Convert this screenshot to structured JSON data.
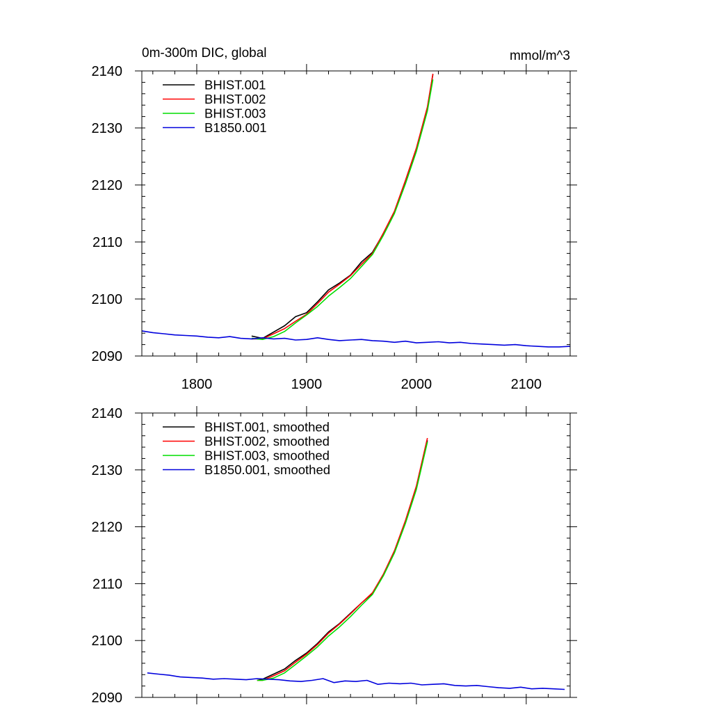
{
  "figure": {
    "title_left": "0m-300m DIC, global",
    "title_right": "mmol/m^3"
  },
  "chart_data": [
    {
      "type": "line",
      "title": "0m-300m DIC, global",
      "units": "mmol/m^3",
      "xlim": [
        1750,
        2140
      ],
      "ylim": [
        2090,
        2140
      ],
      "x_ticks": [
        1800,
        1900,
        2000,
        2100
      ],
      "x_tick_labels": [
        "1800",
        "1900",
        "2000",
        "2100"
      ],
      "y_ticks": [
        2090,
        2100,
        2110,
        2120,
        2130,
        2140
      ],
      "y_tick_labels": [
        "2090",
        "2100",
        "2110",
        "2120",
        "2130",
        "2140"
      ],
      "legend_position": "top-left",
      "series": [
        {
          "name": "BHIST.001",
          "color": "#000000",
          "x": [
            1850,
            1860,
            1870,
            1880,
            1890,
            1900,
            1910,
            1920,
            1930,
            1940,
            1950,
            1960,
            1970,
            1980,
            1990,
            2000,
            2010,
            2015
          ],
          "y": [
            2093.5,
            2093.1,
            2094.2,
            2095.3,
            2096.9,
            2097.6,
            2099.5,
            2101.6,
            2102.8,
            2104.2,
            2106.5,
            2108.2,
            2111.5,
            2115.2,
            2120.5,
            2126.2,
            2133.5,
            2139.4
          ]
        },
        {
          "name": "BHIST.002",
          "color": "#ff0000",
          "x": [
            1850,
            1860,
            1870,
            1880,
            1890,
            1900,
            1910,
            1920,
            1930,
            1940,
            1950,
            1960,
            1970,
            1980,
            1990,
            2000,
            2010,
            2015
          ],
          "y": [
            2093.0,
            2093.0,
            2093.9,
            2094.8,
            2096.1,
            2097.3,
            2099.2,
            2101.2,
            2102.6,
            2104.1,
            2106.1,
            2108.0,
            2111.6,
            2115.4,
            2120.8,
            2126.5,
            2133.7,
            2139.5
          ]
        },
        {
          "name": "BHIST.003",
          "color": "#00dd00",
          "x": [
            1850,
            1860,
            1870,
            1880,
            1890,
            1900,
            1910,
            1920,
            1930,
            1940,
            1950,
            1960,
            1970,
            1980,
            1990,
            2000,
            2010,
            2015
          ],
          "y": [
            2093.1,
            2092.9,
            2093.4,
            2094.3,
            2095.8,
            2097.2,
            2098.7,
            2100.5,
            2102.0,
            2103.6,
            2105.7,
            2107.8,
            2111.2,
            2115.0,
            2120.2,
            2125.9,
            2133.0,
            2138.5
          ]
        },
        {
          "name": "B1850.001",
          "color": "#0000dd",
          "x": [
            1750,
            1760,
            1770,
            1780,
            1790,
            1800,
            1810,
            1820,
            1830,
            1840,
            1850,
            1860,
            1870,
            1880,
            1890,
            1900,
            1910,
            1920,
            1930,
            1940,
            1950,
            1960,
            1970,
            1980,
            1990,
            2000,
            2010,
            2020,
            2030,
            2040,
            2050,
            2060,
            2070,
            2080,
            2090,
            2100,
            2110,
            2120,
            2130,
            2140
          ],
          "y": [
            2094.4,
            2094.1,
            2093.9,
            2093.7,
            2093.6,
            2093.5,
            2093.3,
            2093.2,
            2093.4,
            2093.1,
            2093.0,
            2093.2,
            2093.0,
            2093.1,
            2092.8,
            2092.9,
            2093.2,
            2092.9,
            2092.7,
            2092.8,
            2092.9,
            2092.7,
            2092.6,
            2092.4,
            2092.6,
            2092.3,
            2092.4,
            2092.5,
            2092.3,
            2092.4,
            2092.2,
            2092.1,
            2092.0,
            2091.9,
            2092.0,
            2091.8,
            2091.7,
            2091.6,
            2091.6,
            2091.7
          ]
        }
      ]
    },
    {
      "type": "line",
      "xlim": [
        1750,
        2140
      ],
      "ylim": [
        2090,
        2140
      ],
      "x_ticks": [
        1800,
        1900,
        2000,
        2100
      ],
      "y_ticks": [
        2090,
        2100,
        2110,
        2120,
        2130,
        2140
      ],
      "y_tick_labels": [
        "2090",
        "2100",
        "2110",
        "2120",
        "2130",
        "2140"
      ],
      "legend_position": "top-left",
      "series": [
        {
          "name": "BHIST.001, smoothed",
          "color": "#000000",
          "x": [
            1855,
            1860,
            1870,
            1880,
            1890,
            1900,
            1910,
            1920,
            1930,
            1940,
            1950,
            1960,
            1970,
            1980,
            1990,
            2000,
            2010
          ],
          "y": [
            2093.0,
            2093.2,
            2094.1,
            2095.0,
            2096.5,
            2097.8,
            2099.5,
            2101.5,
            2103.0,
            2104.8,
            2106.6,
            2108.3,
            2111.5,
            2115.5,
            2120.8,
            2126.9,
            2135.2
          ]
        },
        {
          "name": "BHIST.002, smoothed",
          "color": "#ff0000",
          "x": [
            1855,
            1860,
            1870,
            1880,
            1890,
            1900,
            1910,
            1920,
            1930,
            1940,
            1950,
            1960,
            1970,
            1980,
            1990,
            2000,
            2010
          ],
          "y": [
            2093.0,
            2093.0,
            2093.8,
            2094.7,
            2096.2,
            2097.6,
            2099.3,
            2101.3,
            2102.9,
            2104.7,
            2106.6,
            2108.4,
            2111.7,
            2115.8,
            2121.1,
            2127.2,
            2135.6
          ]
        },
        {
          "name": "BHIST.003, smoothed",
          "color": "#00dd00",
          "x": [
            1855,
            1860,
            1870,
            1880,
            1890,
            1900,
            1910,
            1920,
            1930,
            1940,
            1950,
            1960,
            1970,
            1980,
            1990,
            2000,
            2010
          ],
          "y": [
            2093.0,
            2093.0,
            2093.4,
            2094.3,
            2095.8,
            2097.3,
            2098.9,
            2100.8,
            2102.4,
            2104.2,
            2106.2,
            2108.1,
            2111.4,
            2115.4,
            2120.6,
            2126.6,
            2134.9
          ]
        },
        {
          "name": "B1850.001, smoothed",
          "color": "#0000dd",
          "x": [
            1755,
            1765,
            1775,
            1785,
            1795,
            1805,
            1815,
            1825,
            1835,
            1845,
            1855,
            1865,
            1875,
            1885,
            1895,
            1905,
            1915,
            1925,
            1935,
            1945,
            1955,
            1965,
            1975,
            1985,
            1995,
            2005,
            2015,
            2025,
            2035,
            2045,
            2055,
            2065,
            2075,
            2085,
            2095,
            2105,
            2115,
            2125,
            2135
          ],
          "y": [
            2094.3,
            2094.1,
            2093.9,
            2093.6,
            2093.5,
            2093.4,
            2093.2,
            2093.3,
            2093.2,
            2093.1,
            2093.3,
            2093.2,
            2093.1,
            2092.9,
            2092.8,
            2093.0,
            2093.3,
            2092.6,
            2092.9,
            2092.8,
            2093.0,
            2092.3,
            2092.5,
            2092.4,
            2092.5,
            2092.2,
            2092.3,
            2092.4,
            2092.1,
            2092.0,
            2092.1,
            2091.9,
            2091.7,
            2091.6,
            2091.8,
            2091.5,
            2091.6,
            2091.5,
            2091.4
          ]
        }
      ]
    }
  ]
}
